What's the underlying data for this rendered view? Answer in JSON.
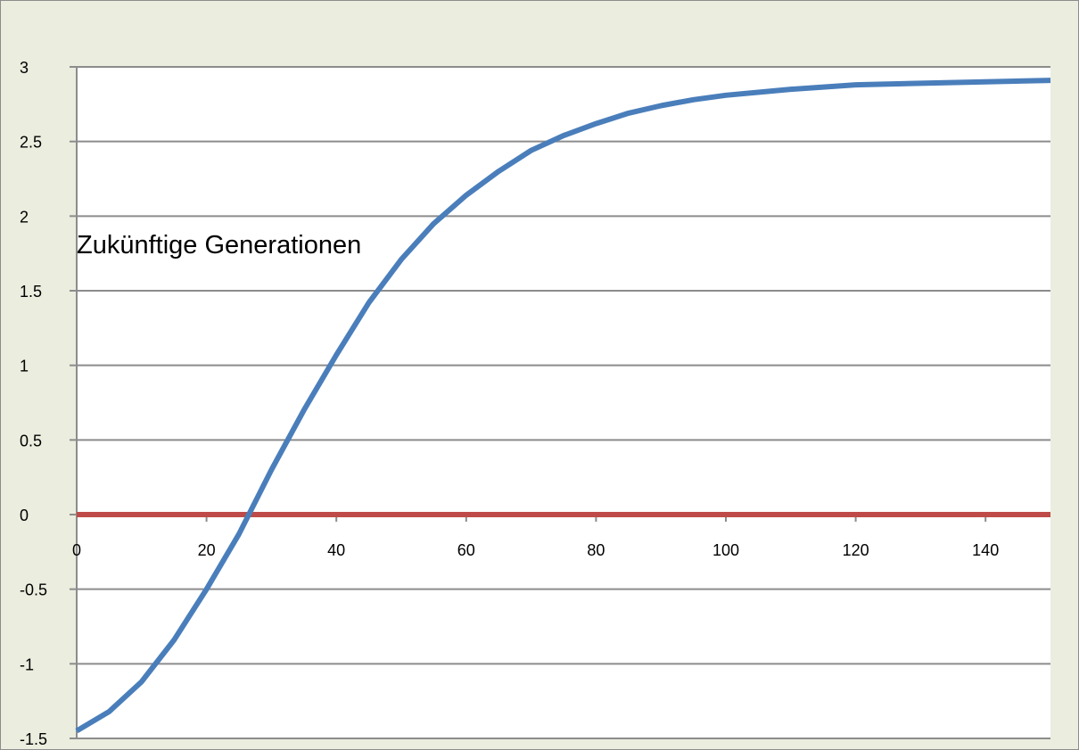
{
  "chart_data": {
    "type": "line",
    "title": "",
    "xlabel": "",
    "ylabel": "",
    "xlim": [
      0,
      150
    ],
    "ylim": [
      -1.5,
      3
    ],
    "x_ticks": [
      0,
      20,
      40,
      60,
      80,
      100,
      120,
      140
    ],
    "x_tick_labels": [
      "0",
      "20",
      "40",
      "60",
      "80",
      "100",
      "120",
      "140"
    ],
    "y_ticks": [
      -1.5,
      -1,
      -0.5,
      0,
      0.5,
      1,
      1.5,
      2,
      2.5,
      3
    ],
    "y_tick_labels": [
      "-1.5",
      "-1",
      "-0.5",
      "0",
      "0.5",
      "1",
      "1.5",
      "2",
      "2.5",
      "3"
    ],
    "grid": "horizontal",
    "legend": "none",
    "annotation": "Zukünftige Generationen",
    "series": [
      {
        "color": "#4a7ebb",
        "x": [
          0,
          5,
          10,
          15,
          20,
          25,
          30,
          35,
          40,
          45,
          50,
          55,
          60,
          65,
          70,
          75,
          80,
          85,
          90,
          95,
          100,
          110,
          120,
          130,
          140,
          150
        ],
        "y": [
          -1.45,
          -1.32,
          -1.12,
          -0.84,
          -0.5,
          -0.13,
          0.3,
          0.7,
          1.07,
          1.42,
          1.71,
          1.95,
          2.14,
          2.3,
          2.44,
          2.54,
          2.62,
          2.69,
          2.74,
          2.78,
          2.81,
          2.85,
          2.88,
          2.89,
          2.9,
          2.91
        ]
      },
      {
        "color": "#be4b48",
        "x": [
          0,
          150
        ],
        "y": [
          0,
          0
        ]
      }
    ]
  }
}
